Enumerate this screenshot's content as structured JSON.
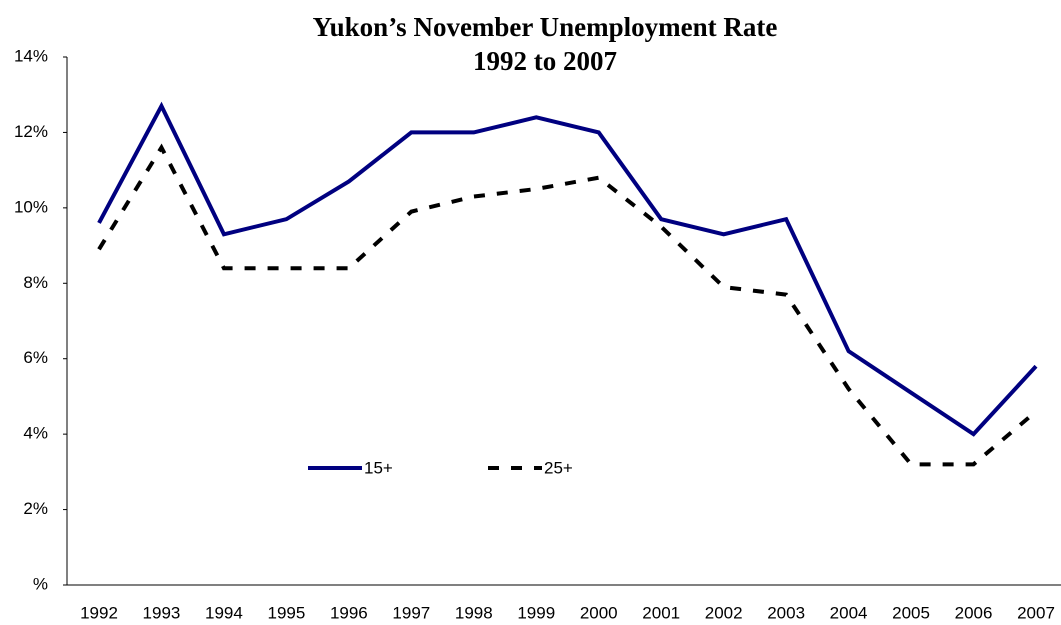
{
  "chart_data": {
    "type": "line",
    "title": "Yukon’s November Unemployment Rate",
    "subtitle": "1992 to 2007",
    "categories": [
      "1992",
      "1993",
      "1994",
      "1995",
      "1996",
      "1997",
      "1998",
      "1999",
      "2000",
      "2001",
      "2002",
      "2003",
      "2004",
      "2005",
      "2006",
      "2007"
    ],
    "series": [
      {
        "name": "15+",
        "color": "#000080",
        "dashed": false,
        "values": [
          9.6,
          12.7,
          9.3,
          9.7,
          10.7,
          12.0,
          12.0,
          12.4,
          12.0,
          9.7,
          9.3,
          9.7,
          6.2,
          5.1,
          4.0,
          5.8
        ]
      },
      {
        "name": "25+",
        "color": "#000000",
        "dashed": true,
        "values": [
          8.9,
          11.6,
          8.4,
          8.4,
          8.4,
          9.9,
          10.3,
          10.5,
          10.8,
          9.5,
          7.9,
          7.7,
          5.2,
          3.2,
          3.2,
          4.6
        ]
      }
    ],
    "ylim": [
      0,
      14
    ],
    "yticks": [
      {
        "value": 0,
        "label": "%"
      },
      {
        "value": 2,
        "label": "2%"
      },
      {
        "value": 4,
        "label": "4%"
      },
      {
        "value": 6,
        "label": "6%"
      },
      {
        "value": 8,
        "label": "8%"
      },
      {
        "value": 10,
        "label": "10%"
      },
      {
        "value": 12,
        "label": "12%"
      },
      {
        "value": 14,
        "label": "14%"
      }
    ],
    "grid": false
  }
}
